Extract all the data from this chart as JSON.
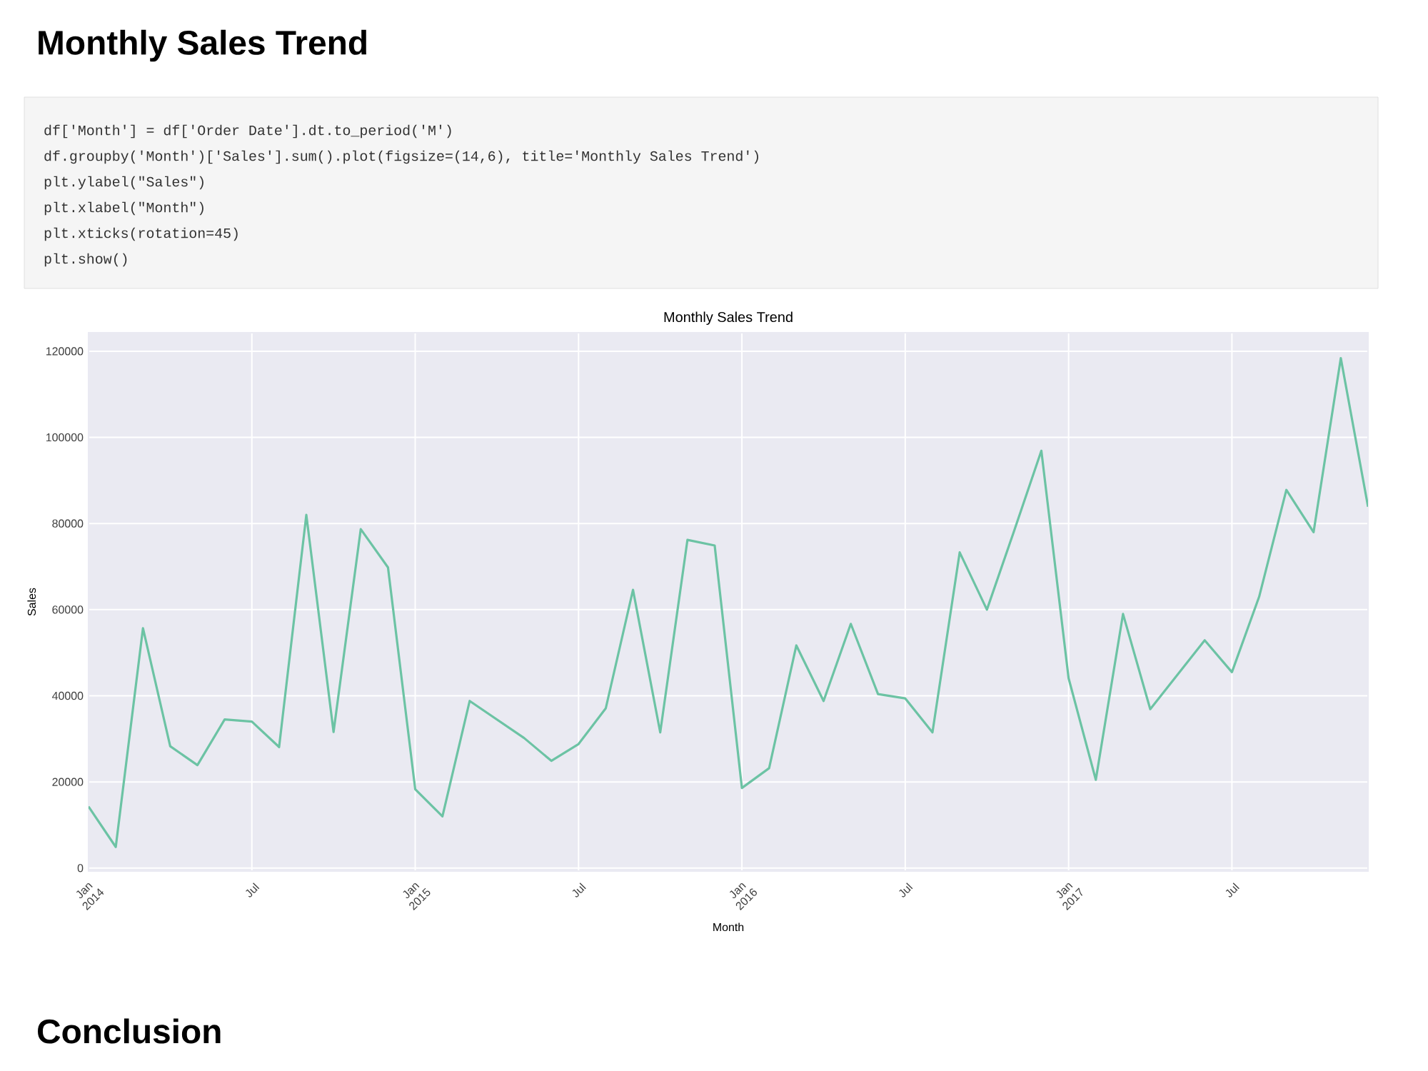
{
  "chart_data": {
    "type": "line",
    "title": "Monthly Sales Trend",
    "xlabel": "Month",
    "ylabel": "Sales",
    "annotations": [
      "Monthly Sales Trend",
      "df['Month'] = df['Order Date'].dt.to_period('M')",
      "df.groupby('Month')['Sales'].sum().plot(figsize=(14,6), title='Monthly Sales Trend')",
      "plt.ylabel(\"Sales\")",
      "plt.xlabel(\"Month\")",
      "plt.xticks(rotation=45)",
      "plt.show()",
      "Conclusion"
    ],
    "x": [
      "2014-01",
      "2014-02",
      "2014-03",
      "2014-04",
      "2014-05",
      "2014-06",
      "2014-07",
      "2014-08",
      "2014-09",
      "2014-10",
      "2014-11",
      "2014-12",
      "2015-01",
      "2015-02",
      "2015-03",
      "2015-04",
      "2015-05",
      "2015-06",
      "2015-07",
      "2015-08",
      "2015-09",
      "2015-10",
      "2015-11",
      "2015-12",
      "2016-01",
      "2016-02",
      "2016-03",
      "2016-04",
      "2016-05",
      "2016-06",
      "2016-07",
      "2016-08",
      "2016-09",
      "2016-10",
      "2016-11",
      "2016-12",
      "2017-01",
      "2017-02",
      "2017-03",
      "2017-04",
      "2017-05",
      "2017-06",
      "2017-07",
      "2017-08",
      "2017-09",
      "2017-10",
      "2017-11",
      "2017-12"
    ],
    "series": [
      {
        "color": "#6cc3a4",
        "values": [
          14300,
          4900,
          55700,
          28300,
          23900,
          34500,
          34000,
          28100,
          82000,
          31600,
          78700,
          69800,
          18300,
          12000,
          38800,
          34500,
          30200,
          24900,
          28800,
          37100,
          64600,
          31500,
          76200,
          74900,
          18600,
          23200,
          51700,
          38800,
          56700,
          40400,
          39400,
          31500,
          73300,
          60000,
          78300,
          96900,
          44100,
          20500,
          59000,
          36900,
          44900,
          52900,
          45500,
          63000,
          87800,
          78000,
          118400,
          83900
        ]
      }
    ],
    "xlim": [
      "2014-01",
      "2017-12"
    ],
    "xticks": [
      {
        "value": "2014-01",
        "label": "Jan 2014"
      },
      {
        "value": "2014-07",
        "label": "Jul"
      },
      {
        "value": "2015-01",
        "label": "Jan 2015"
      },
      {
        "value": "2015-07",
        "label": "Jul"
      },
      {
        "value": "2016-01",
        "label": "Jan 2016"
      },
      {
        "value": "2016-07",
        "label": "Jul"
      },
      {
        "value": "2017-01",
        "label": "Jan 2017"
      },
      {
        "value": "2017-07",
        "label": "Jul"
      }
    ],
    "ylim": [
      -700,
      124300
    ],
    "yticks": [
      0,
      20000,
      40000,
      60000,
      80000,
      100000,
      120000
    ],
    "grid": true,
    "line_style": "solid",
    "marker": "none"
  }
}
